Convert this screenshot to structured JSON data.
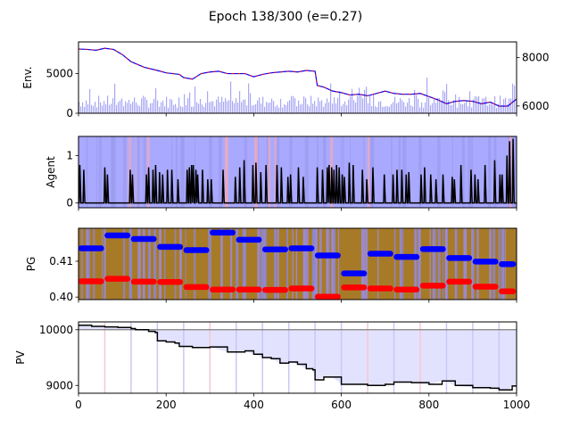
{
  "title": "Epoch 138/300 (e=0.27)",
  "chart_data": [
    {
      "panel": "env",
      "type": "line",
      "ylabel": "Env.",
      "x_range": [
        0,
        1000
      ],
      "ylim": [
        0,
        9000
      ],
      "yticks": [
        0,
        5000
      ],
      "right_axis": {
        "ylim": [
          5700,
          8650
        ],
        "yticks": [
          6000,
          8000
        ]
      },
      "price_series": {
        "x": [
          0,
          20,
          40,
          60,
          80,
          100,
          120,
          150,
          180,
          200,
          230,
          240,
          260,
          280,
          300,
          320,
          340,
          360,
          380,
          400,
          420,
          440,
          460,
          480,
          500,
          520,
          540,
          545,
          560,
          580,
          600,
          620,
          640,
          660,
          680,
          700,
          720,
          740,
          760,
          780,
          800,
          820,
          840,
          860,
          880,
          900,
          920,
          940,
          960,
          980,
          1000
        ],
        "y": [
          8100,
          8050,
          7950,
          8200,
          8050,
          7400,
          6500,
          5800,
          5400,
          5100,
          4900,
          4500,
          4300,
          5000,
          5200,
          5300,
          5000,
          5000,
          5000,
          4600,
          4900,
          5100,
          5200,
          5300,
          5200,
          5400,
          5300,
          3500,
          3300,
          2800,
          2600,
          2300,
          2400,
          2200,
          2500,
          2800,
          2500,
          2400,
          2400,
          2500,
          2100,
          1700,
          1200,
          1500,
          1600,
          1500,
          1200,
          1400,
          900,
          900,
          1800
        ]
      },
      "volume_bars": "light blue bars along the bottom of the panel"
    },
    {
      "panel": "agent",
      "type": "line",
      "ylabel": "Agent",
      "x_range": [
        0,
        1000
      ],
      "ylim": [
        -0.1,
        1.4
      ],
      "yticks": [
        0,
        1
      ],
      "spikes": {
        "x": [
          3,
          12,
          60,
          66,
          118,
          123,
          155,
          160,
          170,
          176,
          185,
          192,
          203,
          213,
          227,
          248,
          253,
          258,
          262,
          268,
          272,
          283,
          295,
          303,
          330,
          358,
          368,
          378,
          398,
          405,
          416,
          428,
          453,
          463,
          478,
          484,
          502,
          513,
          545,
          557,
          568,
          572,
          578,
          583,
          589,
          595,
          602,
          607,
          618,
          627,
          648,
          658,
          672,
          698,
          718,
          727,
          738,
          748,
          754,
          782,
          790,
          804,
          816,
          832,
          853,
          858,
          873,
          896,
          905,
          912,
          928,
          950,
          962,
          967,
          978,
          984,
          992
        ],
        "y": [
          0.8,
          0.7,
          0.75,
          0.6,
          0.7,
          0.6,
          0.6,
          0.75,
          0.7,
          0.8,
          0.65,
          0.6,
          0.7,
          0.7,
          0.5,
          0.7,
          0.75,
          0.8,
          0.8,
          0.7,
          0.6,
          0.7,
          0.5,
          0.5,
          0.7,
          0.55,
          0.75,
          0.9,
          0.8,
          0.85,
          0.65,
          0.8,
          0.8,
          0.75,
          0.55,
          0.6,
          0.75,
          0.55,
          0.75,
          0.7,
          0.75,
          0.8,
          0.75,
          0.7,
          0.8,
          0.75,
          0.6,
          0.55,
          0.85,
          0.8,
          0.7,
          0.5,
          0.75,
          0.6,
          0.6,
          0.7,
          0.7,
          0.6,
          0.65,
          0.6,
          0.75,
          0.6,
          0.5,
          0.6,
          0.55,
          0.5,
          0.8,
          0.7,
          0.6,
          0.5,
          0.8,
          0.9,
          0.6,
          0.6,
          1.0,
          1.3,
          1.35
        ],
        "baseline": 0
      }
    },
    {
      "panel": "pg",
      "type": "scatter",
      "ylabel": "PG",
      "x_range": [
        0,
        1000
      ],
      "ylim": [
        0.3993,
        0.4192
      ],
      "yticks": [
        0.4,
        0.41
      ],
      "ytick_labels": [
        "0.40",
        "0.41"
      ],
      "series": [
        {
          "color": "#0000ff",
          "segments": [
            {
              "x0": 0,
              "x1": 60,
              "y": 0.4136
            },
            {
              "x0": 60,
              "x1": 120,
              "y": 0.4172
            },
            {
              "x0": 120,
              "x1": 180,
              "y": 0.4162
            },
            {
              "x0": 180,
              "x1": 240,
              "y": 0.414
            },
            {
              "x0": 240,
              "x1": 300,
              "y": 0.4131
            },
            {
              "x0": 300,
              "x1": 360,
              "y": 0.418
            },
            {
              "x0": 360,
              "x1": 420,
              "y": 0.416
            },
            {
              "x0": 420,
              "x1": 480,
              "y": 0.4133
            },
            {
              "x0": 480,
              "x1": 540,
              "y": 0.4136
            },
            {
              "x0": 540,
              "x1": 600,
              "y": 0.4116
            },
            {
              "x0": 600,
              "x1": 660,
              "y": 0.4066
            },
            {
              "x0": 660,
              "x1": 720,
              "y": 0.4121
            },
            {
              "x0": 720,
              "x1": 780,
              "y": 0.4112
            },
            {
              "x0": 780,
              "x1": 840,
              "y": 0.4134
            },
            {
              "x0": 840,
              "x1": 900,
              "y": 0.4109
            },
            {
              "x0": 900,
              "x1": 960,
              "y": 0.4099
            },
            {
              "x0": 960,
              "x1": 1000,
              "y": 0.4092
            }
          ]
        },
        {
          "color": "#ff0000",
          "segments": [
            {
              "x0": 0,
              "x1": 60,
              "y": 0.4044
            },
            {
              "x0": 60,
              "x1": 120,
              "y": 0.4051
            },
            {
              "x0": 120,
              "x1": 180,
              "y": 0.4043
            },
            {
              "x0": 180,
              "x1": 240,
              "y": 0.4042
            },
            {
              "x0": 240,
              "x1": 300,
              "y": 0.4028
            },
            {
              "x0": 300,
              "x1": 360,
              "y": 0.4021
            },
            {
              "x0": 360,
              "x1": 420,
              "y": 0.4021
            },
            {
              "x0": 420,
              "x1": 480,
              "y": 0.402
            },
            {
              "x0": 480,
              "x1": 540,
              "y": 0.4024
            },
            {
              "x0": 540,
              "x1": 600,
              "y": 0.4001
            },
            {
              "x0": 600,
              "x1": 660,
              "y": 0.4027
            },
            {
              "x0": 660,
              "x1": 720,
              "y": 0.4024
            },
            {
              "x0": 720,
              "x1": 780,
              "y": 0.4021
            },
            {
              "x0": 780,
              "x1": 840,
              "y": 0.4032
            },
            {
              "x0": 840,
              "x1": 900,
              "y": 0.4043
            },
            {
              "x0": 900,
              "x1": 960,
              "y": 0.4029
            },
            {
              "x0": 960,
              "x1": 1000,
              "y": 0.4016
            }
          ]
        }
      ]
    },
    {
      "panel": "pv",
      "type": "line",
      "ylabel": "PV",
      "xlabel": "",
      "x_range": [
        0,
        1000
      ],
      "xticks": [
        0,
        200,
        400,
        600,
        800,
        1000
      ],
      "ylim": [
        8860,
        10140
      ],
      "yticks": [
        9000,
        10000
      ],
      "reference_line": 10000,
      "vertical_markers": {
        "red": [
          60,
          300,
          660,
          780
        ],
        "blue": [
          120,
          180,
          240,
          360,
          420,
          480,
          540,
          600,
          720,
          840,
          900,
          960
        ]
      },
      "pv_series": {
        "x": [
          0,
          30,
          60,
          90,
          120,
          130,
          160,
          175,
          180,
          200,
          220,
          230,
          260,
          300,
          340,
          380,
          400,
          420,
          440,
          460,
          480,
          500,
          520,
          535,
          540,
          560,
          580,
          600,
          640,
          660,
          700,
          720,
          760,
          800,
          830,
          860,
          900,
          940,
          960,
          980,
          990,
          1000
        ],
        "y": [
          10080,
          10060,
          10050,
          10040,
          10020,
          10000,
          9970,
          9950,
          9800,
          9780,
          9760,
          9700,
          9680,
          9690,
          9600,
          9620,
          9560,
          9500,
          9480,
          9400,
          9420,
          9380,
          9300,
          9280,
          9100,
          9150,
          9150,
          9020,
          9020,
          9000,
          9020,
          9060,
          9050,
          9020,
          9080,
          9000,
          8960,
          8950,
          8920,
          8920,
          8990,
          9000
        ]
      }
    }
  ]
}
